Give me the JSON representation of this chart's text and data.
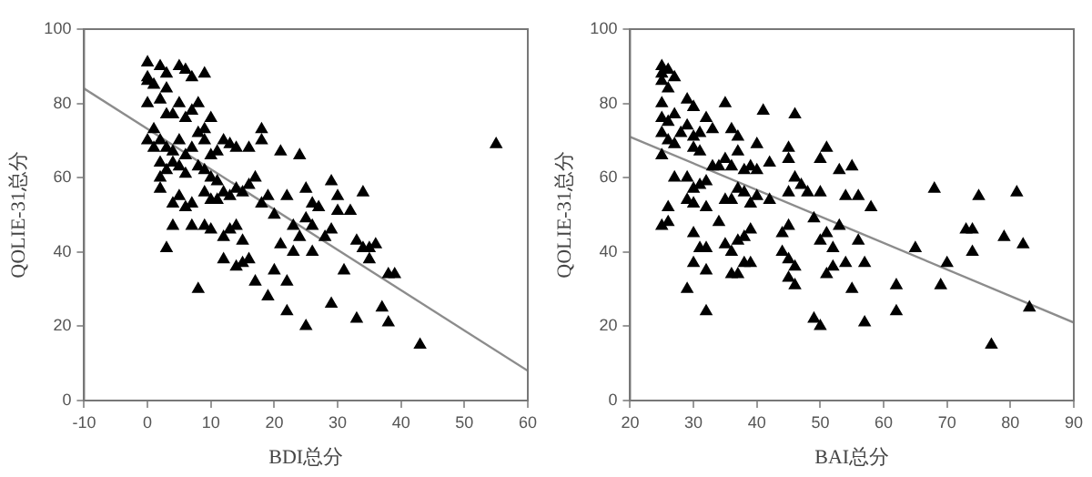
{
  "chart_data": [
    {
      "type": "scatter",
      "xlabel": "BDI总分",
      "ylabel": "QOLIE-31总分",
      "xlim": [
        -10,
        60
      ],
      "ylim": [
        0,
        100
      ],
      "xticks": [
        -10,
        0,
        10,
        20,
        30,
        40,
        50,
        60
      ],
      "yticks": [
        0,
        20,
        40,
        60,
        80,
        100
      ],
      "grid": false,
      "legend": false,
      "series": [
        {
          "marker": "triangle",
          "color": "#000000",
          "x": [
            0,
            0,
            0,
            1,
            0,
            2,
            3,
            2,
            3,
            5,
            6,
            7,
            9,
            8,
            4,
            5,
            3,
            6,
            7,
            9,
            10,
            1,
            2,
            0,
            1,
            3,
            4,
            5,
            6,
            7,
            8,
            9,
            10,
            11,
            12,
            13,
            14,
            16,
            18,
            18,
            21,
            24,
            2,
            3,
            4,
            5,
            6,
            8,
            9,
            10,
            11,
            2,
            2,
            4,
            5,
            6,
            7,
            9,
            10,
            11,
            12,
            13,
            14,
            15,
            16,
            17,
            18,
            19,
            12,
            13,
            14,
            15,
            4,
            7,
            9,
            10,
            3,
            12,
            14,
            15,
            16,
            17,
            8,
            19,
            20,
            22,
            22,
            21,
            22,
            23,
            24,
            25,
            26,
            25,
            26,
            27,
            29,
            30,
            30,
            29,
            32,
            34,
            33,
            34,
            35,
            36,
            35,
            38,
            39,
            31,
            29,
            25,
            33,
            37,
            38,
            43,
            55,
            20,
            23,
            26,
            28
          ],
          "values": [
            91,
            87,
            86,
            85,
            80,
            90,
            88,
            81,
            84,
            90,
            89,
            87,
            88,
            80,
            77,
            80,
            77,
            76,
            78,
            73,
            76,
            73,
            70,
            70,
            68,
            68,
            67,
            70,
            66,
            68,
            72,
            70,
            66,
            67,
            70,
            69,
            68,
            68,
            73,
            70,
            67,
            66,
            64,
            62,
            64,
            63,
            61,
            63,
            62,
            60,
            59,
            60,
            57,
            53,
            55,
            52,
            53,
            56,
            54,
            54,
            56,
            55,
            57,
            56,
            58,
            60,
            53,
            55,
            44,
            46,
            47,
            43,
            47,
            47,
            47,
            46,
            41,
            38,
            36,
            37,
            38,
            32,
            30,
            28,
            35,
            32,
            24,
            42,
            55,
            47,
            44,
            49,
            47,
            57,
            53,
            52,
            59,
            55,
            51,
            46,
            51,
            56,
            43,
            41,
            41,
            42,
            38,
            34,
            34,
            35,
            26,
            20,
            22,
            25,
            21,
            15,
            69,
            50,
            40,
            40,
            44
          ]
        },
        {
          "type": "line",
          "marker": "none",
          "color": "#8c8c8c",
          "line_style": "solid",
          "x": [
            -10,
            60
          ],
          "values": [
            84,
            8
          ]
        }
      ]
    },
    {
      "type": "scatter",
      "xlabel": "BAI总分",
      "ylabel": "QOLIE-31总分",
      "xlim": [
        20,
        90
      ],
      "ylim": [
        0,
        100
      ],
      "xticks": [
        20,
        30,
        40,
        50,
        60,
        70,
        80,
        90
      ],
      "yticks": [
        0,
        20,
        40,
        60,
        80,
        100
      ],
      "grid": false,
      "legend": false,
      "series": [
        {
          "marker": "triangle",
          "color": "#000000",
          "x": [
            25,
            25,
            25,
            26,
            27,
            26,
            25,
            25,
            26,
            27,
            25,
            26,
            27,
            28,
            25,
            25,
            26,
            26,
            27,
            29,
            30,
            29,
            30,
            31,
            32,
            33,
            30,
            31,
            29,
            30,
            29,
            30,
            31,
            32,
            33,
            34,
            32,
            34,
            30,
            31,
            32,
            30,
            32,
            29,
            32,
            35,
            36,
            37,
            35,
            36,
            37,
            38,
            39,
            40,
            41,
            42,
            40,
            35,
            36,
            37,
            38,
            39,
            40,
            42,
            35,
            36,
            37,
            38,
            39,
            38,
            39,
            36,
            37,
            44,
            45,
            45,
            46,
            47,
            48,
            45,
            46,
            45,
            44,
            45,
            46,
            45,
            46,
            49,
            50,
            51,
            52,
            50,
            51,
            50,
            51,
            49,
            50,
            53,
            55,
            54,
            56,
            58,
            56,
            54,
            55,
            57,
            57,
            62,
            62,
            65,
            68,
            69,
            70,
            73,
            74,
            74,
            75,
            77,
            79,
            81,
            82,
            83,
            52,
            53
          ],
          "values": [
            90,
            88,
            86,
            89,
            87,
            84,
            80,
            76,
            75,
            77,
            72,
            70,
            69,
            72,
            66,
            47,
            48,
            52,
            60,
            81,
            79,
            74,
            71,
            72,
            76,
            73,
            68,
            67,
            60,
            57,
            54,
            53,
            58,
            59,
            63,
            63,
            52,
            48,
            45,
            41,
            41,
            37,
            35,
            30,
            24,
            80,
            73,
            71,
            65,
            63,
            67,
            62,
            63,
            69,
            78,
            64,
            62,
            54,
            54,
            57,
            56,
            53,
            55,
            54,
            42,
            40,
            43,
            44,
            46,
            37,
            37,
            34,
            34,
            45,
            47,
            56,
            60,
            58,
            56,
            65,
            77,
            68,
            40,
            38,
            36,
            33,
            31,
            49,
            43,
            45,
            41,
            65,
            68,
            56,
            34,
            22,
            20,
            47,
            63,
            55,
            55,
            52,
            43,
            37,
            30,
            37,
            21,
            31,
            24,
            41,
            57,
            31,
            37,
            46,
            46,
            40,
            55,
            15,
            44,
            56,
            42,
            25,
            36,
            62
          ]
        },
        {
          "type": "line",
          "marker": "none",
          "color": "#8c8c8c",
          "line_style": "solid",
          "x": [
            20,
            90
          ],
          "values": [
            71,
            21
          ]
        }
      ]
    }
  ]
}
